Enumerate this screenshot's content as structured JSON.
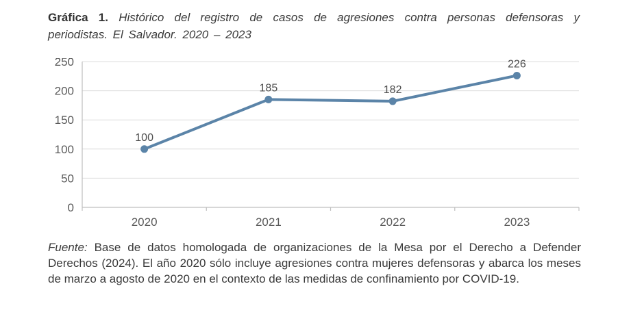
{
  "title": {
    "label": "Gráfica 1.",
    "text": "Histórico del registro de casos de agresiones contra personas defensoras y periodistas. El Salvador. 2020 – 2023"
  },
  "chart_data": {
    "type": "line",
    "categories": [
      "2020",
      "2021",
      "2022",
      "2023"
    ],
    "values": [
      100,
      185,
      182,
      226
    ],
    "data_labels": [
      "100",
      "185",
      "182",
      "226"
    ],
    "title": "",
    "xlabel": "",
    "ylabel": "",
    "ylim": [
      0,
      250
    ],
    "yticks": [
      0,
      50,
      100,
      150,
      200,
      250
    ],
    "grid": true,
    "legend": "none",
    "marker": "circle"
  },
  "source": {
    "label": "Fuente:",
    "text": "Base de datos homologada de organizaciones de la Mesa por el Derecho a Defender Derechos (2024). El año 2020 sólo incluye agresiones contra mujeres defensoras y abarca los meses de marzo a agosto de 2020 en el contexto de las medidas de confinamiento por COVID-19."
  },
  "colors": {
    "line": "#5b84a8",
    "marker": "#5b84a8",
    "gridline": "#dcdcdc",
    "axis": "#bfbfbf",
    "tick_label": "#595959",
    "data_label": "#4d4d4d",
    "text": "#3a3a3a",
    "background": "#ffffff"
  }
}
